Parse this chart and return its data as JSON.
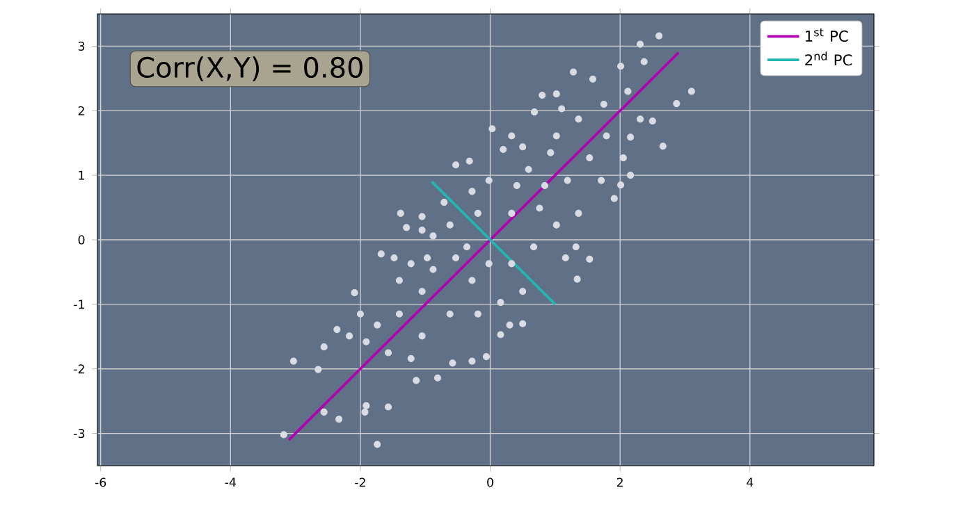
{
  "chart_data": {
    "type": "scatter",
    "xlim": [
      -6.05,
      5.91
    ],
    "ylim": [
      -3.5,
      3.5
    ],
    "xticks": [
      -6,
      -4,
      -2,
      0,
      2,
      4
    ],
    "yticks": [
      -3,
      -2,
      -1,
      0,
      1,
      2,
      3
    ],
    "grid": true,
    "legend": "top right",
    "annotations": [
      "Corr(X,Y) = 0.80"
    ],
    "series": [
      {
        "color": "#d9dde3",
        "marker": "circle",
        "x": [
          2.6,
          2.31,
          2.37,
          3.1,
          2.87,
          2.66,
          2.5,
          2.31,
          2.16,
          2.16,
          1.91,
          2.01,
          1.53,
          1.34,
          1.32,
          1.16,
          0.5,
          0.3,
          0.16,
          -0.06,
          -0.28,
          -0.58,
          -0.81,
          -1.14,
          -1.57,
          -1.74,
          -1.93,
          -1.91,
          -2.33,
          -2.56,
          -3.18,
          -3.03,
          -2.65,
          -2.56,
          -2.36,
          -2.09,
          -1.68,
          -1.48,
          -1.38,
          -1.29,
          -1.05,
          -0.53,
          -0.32,
          0.03,
          0.8,
          1.02,
          1.1,
          1.28,
          1.58,
          1.75,
          2.01,
          2.12,
          0.68,
          0.33,
          0.2,
          1.36,
          0.93,
          0.59,
          1.53,
          1.71,
          1.36,
          1.02,
          0.76,
          0.41,
          -0.02,
          -0.19,
          -0.62,
          -0.88,
          -0.36,
          -0.02,
          0.33,
          0.67,
          0.5,
          0.16,
          -0.19,
          -0.62,
          -1.05,
          -1.4,
          -1.22,
          -0.88,
          -1.4,
          -1.74,
          -1.91,
          -1.57,
          -1.05,
          -1.22,
          -2.17,
          -2.0,
          -0.97,
          -0.53,
          -0.71,
          -0.28,
          0.33,
          0.84,
          1.19,
          1.02,
          0.5,
          2.05,
          1.79,
          -1.05,
          -0.28
        ],
        "values": [
          3.16,
          3.03,
          2.76,
          2.3,
          2.11,
          1.45,
          1.84,
          1.87,
          1.59,
          1.0,
          0.64,
          0.85,
          -0.3,
          -0.61,
          -0.11,
          -0.28,
          -1.3,
          -1.32,
          -1.47,
          -1.81,
          -1.88,
          -1.91,
          -2.14,
          -2.18,
          -2.59,
          -3.17,
          -2.67,
          -2.57,
          -2.78,
          -2.67,
          -3.02,
          -1.88,
          -2.01,
          -1.66,
          -1.39,
          -0.82,
          -0.22,
          -0.28,
          0.41,
          0.19,
          0.36,
          1.16,
          1.22,
          1.72,
          2.24,
          2.26,
          2.03,
          2.6,
          2.49,
          2.1,
          2.69,
          2.3,
          1.98,
          1.61,
          1.4,
          1.87,
          1.35,
          1.09,
          1.27,
          0.92,
          0.41,
          0.23,
          0.49,
          0.84,
          0.92,
          0.41,
          0.23,
          0.06,
          -0.11,
          -0.37,
          -0.37,
          -0.11,
          -0.8,
          -0.97,
          -1.15,
          -1.15,
          -0.8,
          -0.63,
          -0.37,
          -0.46,
          -1.15,
          -1.32,
          -1.58,
          -1.75,
          -1.49,
          -1.84,
          -1.49,
          -1.15,
          -0.28,
          -0.28,
          0.58,
          0.75,
          0.41,
          0.84,
          0.92,
          1.61,
          1.44,
          1.27,
          1.61,
          0.15,
          -0.63
        ]
      },
      {
        "type": "line",
        "name": "1$^{st}$ PC",
        "color": "#b000b0",
        "x": [
          -3.1,
          2.9
        ],
        "values": [
          -3.1,
          2.9
        ]
      },
      {
        "type": "line",
        "name": "2$^{nd}$ PC",
        "color": "#20b8b0",
        "x": [
          -0.9,
          1.0
        ],
        "values": [
          0.9,
          -1.0
        ]
      }
    ]
  }
}
